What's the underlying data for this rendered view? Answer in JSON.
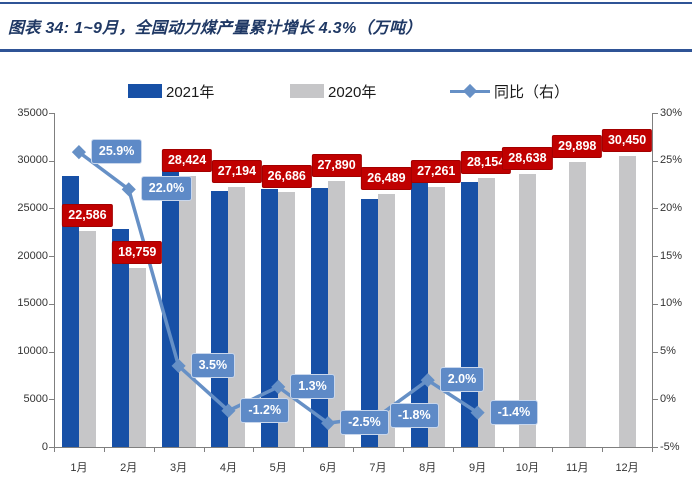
{
  "title": "图表 34:  1~9月，全国动力煤产量累计增长 4.3%（万吨）",
  "colors": {
    "bar_2021": "#1750A6",
    "bar_2020": "#C6C6C8",
    "line": "#6690C6",
    "value_label_bg": "#C00000",
    "value_label_border": "#A30000",
    "pct_label_bg": "#5E8AC7",
    "title_navy": "#1F3864",
    "rule_blue": "#2F5496",
    "axis_text": "#333333",
    "axis_line": "#7F7F7F"
  },
  "legend": {
    "items": [
      {
        "label": "2021年",
        "kind": "bar",
        "color": "#1750A6"
      },
      {
        "label": "2020年",
        "kind": "bar",
        "color": "#C6C6C8"
      },
      {
        "label": "同比（右）",
        "kind": "line",
        "color": "#6690C6"
      }
    ]
  },
  "chart_data": {
    "type": "combo",
    "categories": [
      "1月",
      "2月",
      "3月",
      "4月",
      "5月",
      "6月",
      "7月",
      "8月",
      "9月",
      "10月",
      "11月",
      "12月"
    ],
    "series": [
      {
        "name": "2021年",
        "type": "bar",
        "axis": "left",
        "values": [
          28436,
          22886,
          29419,
          26868,
          27033,
          27193,
          26012,
          27806,
          27760,
          null,
          null,
          null
        ],
        "note": "unlabeled on chart; estimated from bar heights / yoy line"
      },
      {
        "name": "2020年",
        "type": "bar",
        "axis": "left",
        "values": [
          22586,
          18759,
          28424,
          27194,
          26686,
          27890,
          26489,
          27261,
          28154,
          28638,
          29898,
          30450
        ],
        "labels": [
          "22,586",
          "18,759",
          "28,424",
          "27,194",
          "26,686",
          "27,890",
          "26,489",
          "27,261",
          "28,154",
          "28,638",
          "29,898",
          "30,450"
        ]
      },
      {
        "name": "同比（右）",
        "type": "line",
        "axis": "right",
        "values": [
          25.9,
          22.0,
          3.5,
          -1.2,
          1.3,
          -2.5,
          -1.8,
          2.0,
          -1.4,
          null,
          null,
          null
        ],
        "labels": [
          "25.9%",
          "22.0%",
          "3.5%",
          "-1.2%",
          "1.3%",
          "-2.5%",
          "-1.8%",
          "2.0%",
          "-1.4%",
          null,
          null,
          null
        ]
      }
    ],
    "left_axis": {
      "min": 0,
      "max": 35000,
      "step": 5000,
      "tick_labels": [
        "35000",
        "30000",
        "25000",
        "20000",
        "15000",
        "10000",
        "5000",
        "0"
      ]
    },
    "right_axis": {
      "min": -5,
      "max": 30,
      "step": 5,
      "tick_labels": [
        "30%",
        "25%",
        "20%",
        "15%",
        "10%",
        "5%",
        "0%",
        "-5%"
      ]
    },
    "grid": false,
    "legend_position": "top"
  }
}
